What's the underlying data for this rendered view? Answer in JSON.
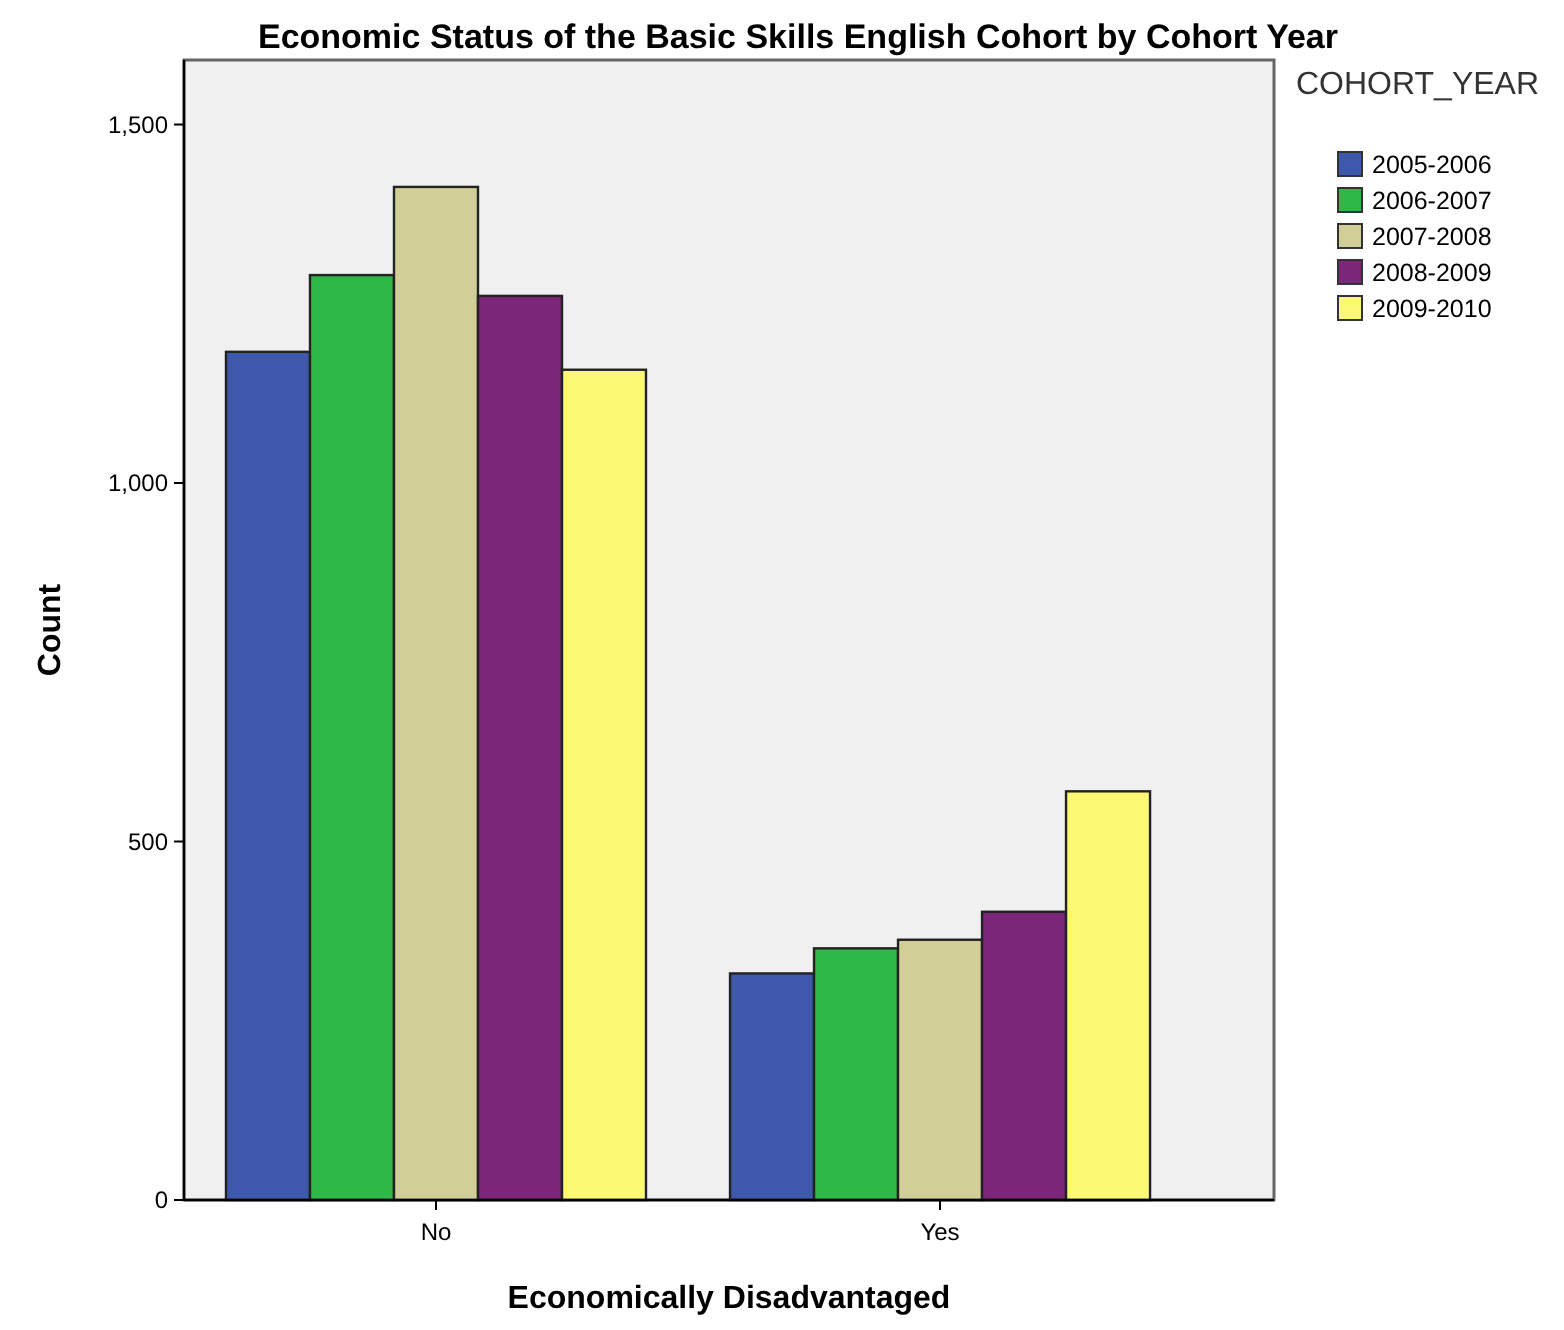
{
  "chart_data": {
    "type": "bar",
    "title": "Economic Status of the Basic Skills English Cohort by Cohort Year",
    "xlabel": "Economically Disadvantaged",
    "ylabel": "Count",
    "legend_title": "COHORT_YEAR",
    "legend": "top right",
    "categories": [
      "No",
      "Yes"
    ],
    "series": [
      {
        "name": "2005-2006",
        "color": "#3e58ac",
        "values": [
          1183,
          316
        ]
      },
      {
        "name": "2006-2007",
        "color": "#2eb848",
        "values": [
          1290,
          351
        ]
      },
      {
        "name": "2007-2008",
        "color": "#d2ce98",
        "values": [
          1413,
          363
        ]
      },
      {
        "name": "2008-2009",
        "color": "#7b2678",
        "values": [
          1261,
          402
        ]
      },
      {
        "name": "2009-2010",
        "color": "#fbf873",
        "values": [
          1158,
          570
        ]
      }
    ],
    "ylim": [
      0,
      1590
    ],
    "yticks": [
      0,
      {
        "value": 500,
        "label": "500"
      },
      {
        "value": 1000,
        "label": "1,000"
      },
      {
        "value": 1500,
        "label": "1,500"
      }
    ]
  }
}
